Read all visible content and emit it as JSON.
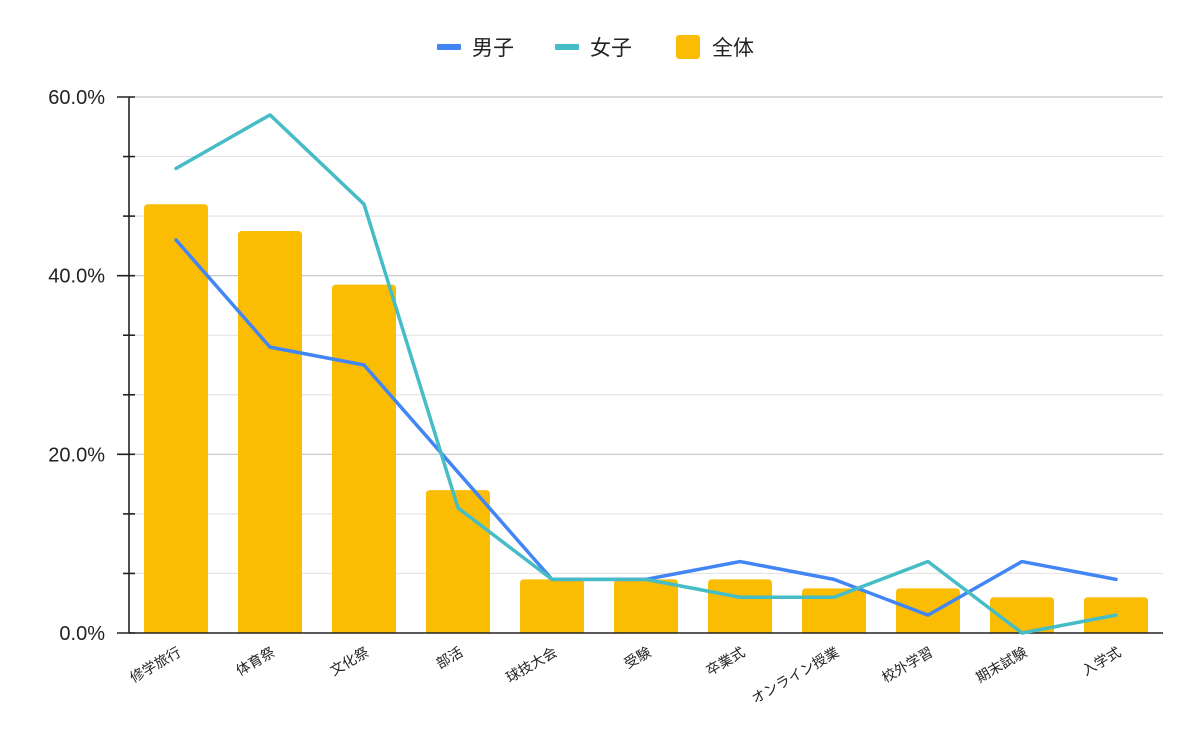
{
  "chart_data": {
    "type": "bar",
    "categories": [
      "修学旅行",
      "体育祭",
      "文化祭",
      "部活",
      "球技大会",
      "受験",
      "卒業式",
      "オンライン授業",
      "校外学習",
      "期末試験",
      "入学式"
    ],
    "series": [
      {
        "name": "全体",
        "type": "bar",
        "color": "#FBBC04",
        "values": [
          48,
          45,
          39,
          16,
          6,
          6,
          6,
          5,
          5,
          4,
          4
        ]
      },
      {
        "name": "男子",
        "type": "line",
        "color": "#4285F4",
        "values": [
          44,
          32,
          30,
          18,
          6,
          6,
          8,
          6,
          2,
          8,
          6
        ]
      },
      {
        "name": "女子",
        "type": "line",
        "color": "#46BDC6",
        "values": [
          52,
          58,
          48,
          14,
          6,
          6,
          4,
          4,
          8,
          0,
          2
        ]
      }
    ],
    "ylim": [
      0,
      60
    ],
    "y_ticks": [
      "0.0%",
      "20.0%",
      "40.0%",
      "60.0%"
    ],
    "legend": [
      {
        "name": "男子",
        "color": "#4285F4",
        "marker": "line"
      },
      {
        "name": "女子",
        "color": "#46BDC6",
        "marker": "line"
      },
      {
        "name": "全体",
        "color": "#FBBC04",
        "marker": "square"
      }
    ],
    "legend_position": "top-center",
    "grid": true
  }
}
